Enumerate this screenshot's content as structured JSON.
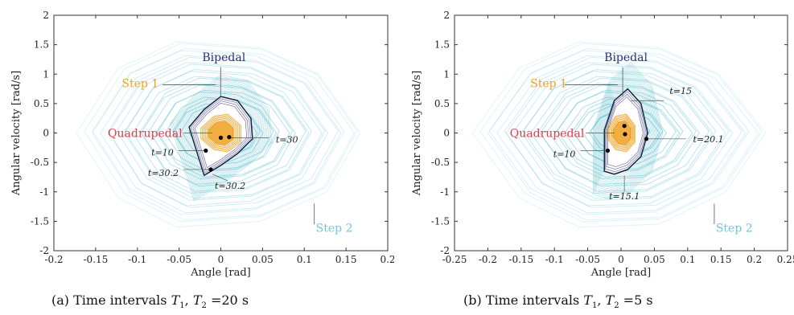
{
  "chart_data": [
    {
      "type": "line",
      "caption": {
        "prefix": "(a) Time intervals",
        "t1": "T",
        "t1_sub": "1",
        "sep": ",",
        "t2": "T",
        "t2_sub": "2",
        "suffix": "=20 s"
      },
      "xlabel": "Angle [rad]",
      "ylabel": "Angular velocity [rad/s]",
      "xlim": [
        -0.2,
        0.2
      ],
      "ylim": [
        -2,
        2
      ],
      "xticks": [
        "-0.2",
        "-0.15",
        "-0.1",
        "-0.05",
        "0",
        "0.05",
        "0.1",
        "0.15",
        "0.2"
      ],
      "yticks": [
        "2",
        "1.5",
        "1",
        "0.5",
        "0",
        "-0.5",
        "-1",
        "-1.5",
        "-2"
      ],
      "grid": false,
      "colors": {
        "bipedal": "#2b2f7a",
        "step1": "#f0a020",
        "step2": "#6cc8dc",
        "quadrupedal": "#e03a4a",
        "limit_cycle": "#1a2b4a",
        "points": "#000000"
      },
      "series": [
        {
          "name": "Bipedal",
          "x": [
            -0.038,
            -0.02,
            0.0,
            0.02,
            0.036,
            0.038,
            0.02,
            0.0,
            -0.02,
            -0.038
          ],
          "y": [
            0.1,
            0.4,
            0.62,
            0.55,
            0.25,
            -0.1,
            -0.35,
            -0.55,
            -0.72,
            0.1
          ]
        },
        {
          "name": "Step 1",
          "x": [
            -0.015,
            -0.005,
            0.005,
            0.015,
            0.015,
            0.005,
            -0.005,
            -0.015,
            -0.015
          ],
          "y": [
            0.05,
            0.18,
            0.2,
            0.08,
            -0.1,
            -0.2,
            -0.18,
            -0.06,
            0.05
          ]
        },
        {
          "name": "Step 2",
          "x": [
            -0.17,
            -0.12,
            -0.05,
            0.05,
            0.12,
            0.17,
            0.13,
            0.05,
            -0.05,
            -0.12,
            -0.17
          ],
          "y": [
            0.0,
            1.1,
            1.55,
            1.45,
            1.0,
            0.0,
            -1.0,
            -1.5,
            -1.6,
            -1.1,
            0.0
          ]
        }
      ],
      "labels": {
        "bipedal": "Bipedal",
        "step1": "Step 1",
        "step2": "Step 2",
        "quadrupedal": "Quadrupedal"
      },
      "annotations": [
        {
          "text": "t=30",
          "x": 0.01,
          "y": -0.08
        },
        {
          "text": "t=10",
          "x": -0.018,
          "y": -0.3
        },
        {
          "text": "t=30.2",
          "x": -0.012,
          "y": -0.62
        },
        {
          "text": "t=30.2",
          "x": -0.01,
          "y": -0.7
        }
      ],
      "points": [
        {
          "x": 0.0,
          "y": -0.08
        },
        {
          "x": 0.01,
          "y": -0.07
        },
        {
          "x": -0.018,
          "y": -0.3
        },
        {
          "x": -0.012,
          "y": -0.62
        }
      ]
    },
    {
      "type": "line",
      "caption": {
        "prefix": "(b) Time intervals",
        "t1": "T",
        "t1_sub": "1",
        "sep": ",",
        "t2": "T",
        "t2_sub": "2",
        "suffix": "=5 s"
      },
      "xlabel": "Angle [rad]",
      "ylabel": "Angular velocity [rad/s]",
      "xlim": [
        -0.25,
        0.25
      ],
      "ylim": [
        -2,
        2
      ],
      "xticks": [
        "-0.25",
        "-0.2",
        "-0.15",
        "-0.1",
        "-0.05",
        "0",
        "0.05",
        "0.1",
        "0.15",
        "0.2",
        "0.25"
      ],
      "yticks": [
        "2",
        "1.5",
        "1",
        "0.5",
        "0",
        "-0.5",
        "-1",
        "-1.5",
        "-2"
      ],
      "grid": false,
      "colors": {
        "bipedal": "#2b2f7a",
        "step1": "#f0a020",
        "step2": "#6cc8dc",
        "quadrupedal": "#e03a4a",
        "limit_cycle": "#1a2b4a",
        "points": "#000000"
      },
      "series": [
        {
          "name": "Bipedal",
          "x": [
            -0.025,
            -0.01,
            0.01,
            0.03,
            0.04,
            0.03,
            0.01,
            -0.01,
            -0.025,
            -0.025
          ],
          "y": [
            0.05,
            0.55,
            0.75,
            0.5,
            0.0,
            -0.4,
            -0.62,
            -0.7,
            -0.65,
            0.05
          ]
        },
        {
          "name": "Step 1",
          "x": [
            -0.012,
            -0.004,
            0.006,
            0.014,
            0.014,
            0.006,
            -0.004,
            -0.012,
            -0.012
          ],
          "y": [
            0.05,
            0.18,
            0.2,
            0.08,
            -0.1,
            -0.2,
            -0.18,
            -0.06,
            0.05
          ]
        },
        {
          "name": "Step 2",
          "x": [
            -0.22,
            -0.15,
            -0.06,
            0.06,
            0.15,
            0.22,
            0.16,
            0.06,
            -0.06,
            -0.15,
            -0.22
          ],
          "y": [
            0.0,
            1.1,
            1.55,
            1.45,
            1.0,
            0.0,
            -1.0,
            -1.55,
            -1.6,
            -1.1,
            0.0
          ]
        }
      ],
      "labels": {
        "bipedal": "Bipedal",
        "step1": "Step 1",
        "step2": "Step 2",
        "quadrupedal": "Quadrupedal"
      },
      "annotations": [
        {
          "text": "t=15",
          "x": 0.015,
          "y": 0.55
        },
        {
          "text": "t=20.1",
          "x": 0.038,
          "y": -0.1
        },
        {
          "text": "t=10",
          "x": -0.02,
          "y": -0.3
        },
        {
          "text": "t=15.1",
          "x": 0.005,
          "y": -0.72
        }
      ],
      "points": [
        {
          "x": 0.005,
          "y": 0.12
        },
        {
          "x": 0.006,
          "y": -0.02
        },
        {
          "x": -0.02,
          "y": -0.3
        },
        {
          "x": 0.038,
          "y": -0.1
        }
      ]
    }
  ]
}
